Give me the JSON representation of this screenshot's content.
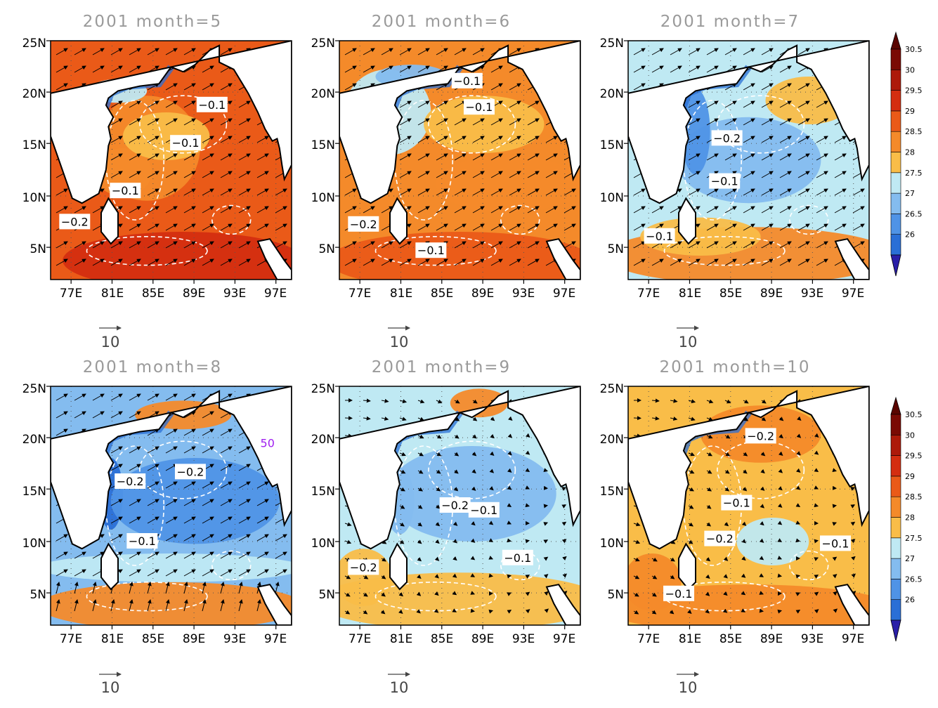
{
  "figure": {
    "y_ticks": [
      "25N",
      "20N",
      "15N",
      "10N",
      "5N"
    ],
    "x_ticks": [
      "77E",
      "81E",
      "85E",
      "89E",
      "93E",
      "97E"
    ],
    "colorbar": {
      "levels": [
        "26",
        "26.5",
        "27",
        "27.5",
        "28",
        "28.5",
        "29",
        "29.5",
        "30",
        "30.5"
      ],
      "colors": [
        "#2a6fd6",
        "#4f93e6",
        "#84bcef",
        "#bfe9f3",
        "#f9bd48",
        "#f48a2a",
        "#ea5a18",
        "#d42e10",
        "#ad1a0a",
        "#7a0a04"
      ],
      "under_color": "#2a1fa8",
      "over_color": "#5a0500"
    },
    "reference_vector": "10"
  },
  "panels": [
    {
      "title": "2001  month=5",
      "dominant_sst": "29",
      "contour_labels": [
        "-0.1",
        "-0.1",
        "-0.1",
        "-0.2"
      ],
      "wind": "southwest"
    },
    {
      "title": "2001  month=6",
      "dominant_sst": "28.5",
      "contour_labels": [
        "-0.1",
        "-0.1",
        "-0.2",
        "-0.1"
      ],
      "wind": "southwest"
    },
    {
      "title": "2001  month=7",
      "dominant_sst": "27.5",
      "contour_labels": [
        "-0.2",
        "-0.1",
        "-0.1"
      ],
      "wind": "southwest"
    },
    {
      "title": "2001  month=8",
      "dominant_sst": "27",
      "contour_labels": [
        "-0.2",
        "-0.2",
        "-0.1",
        "50"
      ],
      "wind": "southwest"
    },
    {
      "title": "2001  month=9",
      "dominant_sst": "27.5",
      "contour_labels": [
        "-0.2",
        "-0.1",
        "-0.1",
        "-0.2"
      ],
      "wind": "weak"
    },
    {
      "title": "2001  month=10",
      "dominant_sst": "28",
      "contour_labels": [
        "-0.2",
        "-0.1",
        "-0.2",
        "-0.1",
        "-0.1"
      ],
      "wind": "weak"
    }
  ]
}
